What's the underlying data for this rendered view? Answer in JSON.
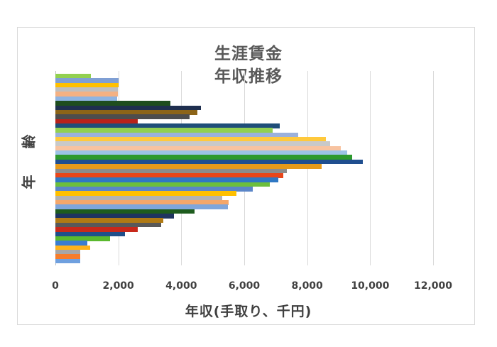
{
  "chart_data": {
    "type": "bar",
    "orientation": "horizontal",
    "title": "生涯賃金\n年収推移",
    "title_lines": [
      "生涯賃金",
      "年収推移"
    ],
    "xlabel": "年収(手取り、千円)",
    "ylabel": "年齢",
    "xlim": [
      0,
      12000
    ],
    "xticks": [
      "0",
      "2,000",
      "4,000",
      "6,000",
      "8,000",
      "10,000",
      "12,000"
    ],
    "xtick_values": [
      0,
      2000,
      4000,
      6000,
      8000,
      10000,
      12000
    ],
    "grid": "vertical",
    "legend": "none",
    "order": "top-to-bottom",
    "values": [
      1130,
      2000,
      2010,
      1990,
      1990,
      1960,
      3650,
      4620,
      4510,
      4260,
      2620,
      7130,
      6900,
      7710,
      8590,
      8730,
      9060,
      9270,
      9420,
      9760,
      8460,
      7350,
      7240,
      7080,
      6810,
      6270,
      5750,
      5300,
      5500,
      5480,
      4420,
      3770,
      3430,
      3360,
      2620,
      2210,
      1740,
      1010,
      1100,
      790,
      790,
      790
    ],
    "colors": [
      "#92d050",
      "#7f9fd4",
      "#ffc000",
      "#bfbfbf",
      "#f4b183",
      "#8eb4e3",
      "#1e4d1e",
      "#1f2f4f",
      "#8c6418",
      "#4d4d4d",
      "#b8221a",
      "#1f4e79",
      "#92d050",
      "#9bb1db",
      "#ffc93c",
      "#c9c9c9",
      "#f8c3a0",
      "#9dc3e6",
      "#2e9a2e",
      "#1f4e8f",
      "#e69a1a",
      "#8c8c8c",
      "#e8461a",
      "#2f78c4",
      "#6cbf3c",
      "#5b86c8",
      "#ffc000",
      "#b3b3b3",
      "#f4a76b",
      "#7fa6dc",
      "#1e5c1e",
      "#1f3460",
      "#b07a14",
      "#595959",
      "#c8281a",
      "#1f4f8a",
      "#5ab92e",
      "#3b7dd0",
      "#ffb31a",
      "#a6a6a6",
      "#f57c2a",
      "#6fa0df"
    ]
  }
}
